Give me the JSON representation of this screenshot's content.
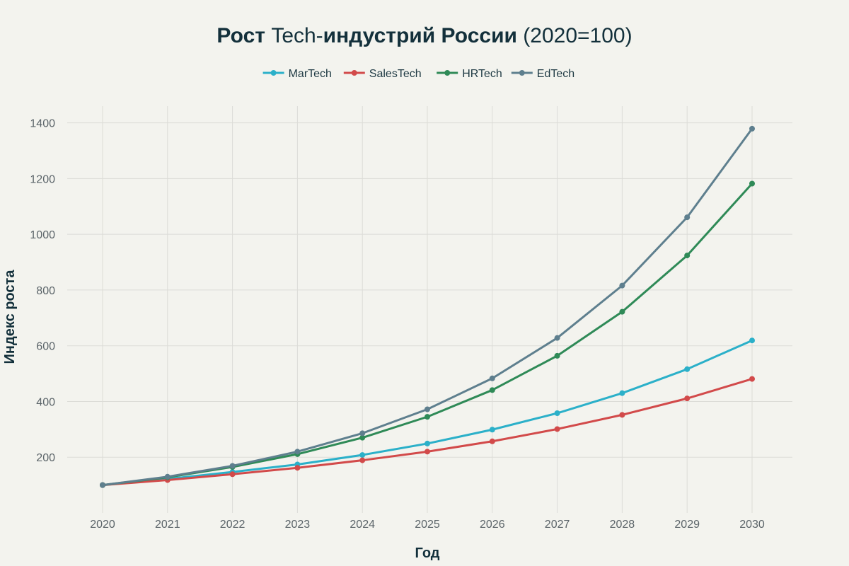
{
  "chart_data": {
    "type": "line",
    "title_parts": [
      {
        "text": "Рост ",
        "bold": true
      },
      {
        "text": "Tech-",
        "bold": false
      },
      {
        "text": "индустрий России ",
        "bold": true
      },
      {
        "text": "(2020=100)",
        "bold": false
      }
    ],
    "xlabel": "Год",
    "ylabel": "Индекс роста",
    "categories": [
      "2020",
      "2021",
      "2022",
      "2023",
      "2024",
      "2025",
      "2026",
      "2027",
      "2028",
      "2029",
      "2030"
    ],
    "ylim": [
      0,
      1460
    ],
    "yticks": [
      200,
      400,
      600,
      800,
      1000,
      1200,
      1400
    ],
    "grid": true,
    "legend_position": "top-center",
    "series": [
      {
        "name": "MarTech",
        "color": "#2bb0c9",
        "values": [
          100,
          122,
          147,
          174,
          208,
          249,
          299,
          358,
          430,
          516,
          619
        ]
      },
      {
        "name": "SalesTech",
        "color": "#d24a4a",
        "values": [
          100,
          118,
          139,
          162,
          189,
          220,
          257,
          301,
          352,
          411,
          481
        ]
      },
      {
        "name": "HRTech",
        "color": "#2f8a57",
        "values": [
          100,
          128,
          165,
          211,
          270,
          345,
          441,
          564,
          722,
          924,
          1182
        ]
      },
      {
        "name": "EdTech",
        "color": "#5e7f8e",
        "values": [
          100,
          130,
          169,
          220,
          286,
          372,
          483,
          628,
          816,
          1061,
          1379
        ]
      }
    ]
  }
}
